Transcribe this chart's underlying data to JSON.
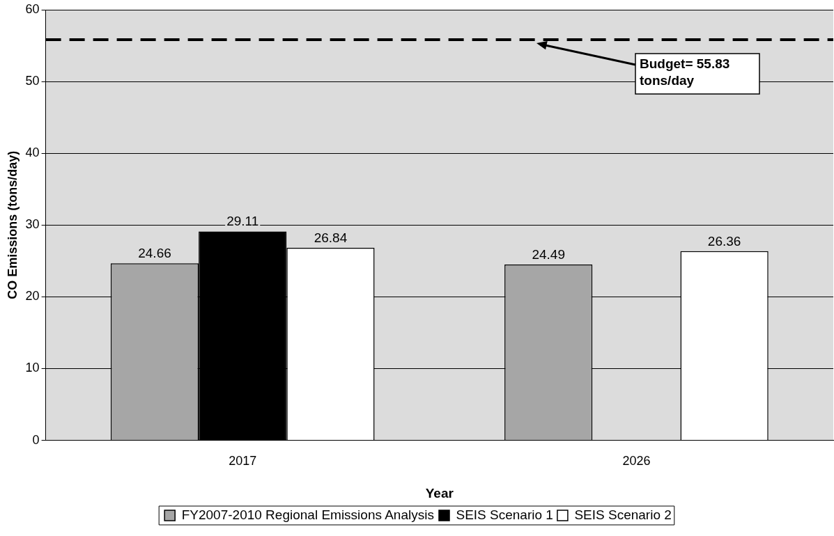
{
  "chart_data": {
    "type": "bar",
    "xlabel": "Year",
    "ylabel": "CO Emissions (tons/day)",
    "categories": [
      "2017",
      "2026"
    ],
    "series": [
      {
        "name": "FY2007-2010 Regional Emissions Analysis",
        "color": "#a6a6a6",
        "values": [
          24.66,
          24.49
        ]
      },
      {
        "name": "SEIS Scenario 1",
        "color": "#000000",
        "values": [
          29.11,
          null
        ]
      },
      {
        "name": "SEIS Scenario 2",
        "color": "#ffffff",
        "values": [
          26.84,
          26.36
        ]
      }
    ],
    "ylim": [
      0,
      60
    ],
    "yticks": [
      0,
      10,
      20,
      30,
      40,
      50,
      60
    ],
    "grid": "y",
    "legend": "bottom",
    "data_labels": true,
    "ref_lines": [
      {
        "axis": "y",
        "value": 55.83,
        "label": "Budget= 55.83 tons/day",
        "color": "#000000",
        "line_style": "dashed"
      }
    ]
  }
}
